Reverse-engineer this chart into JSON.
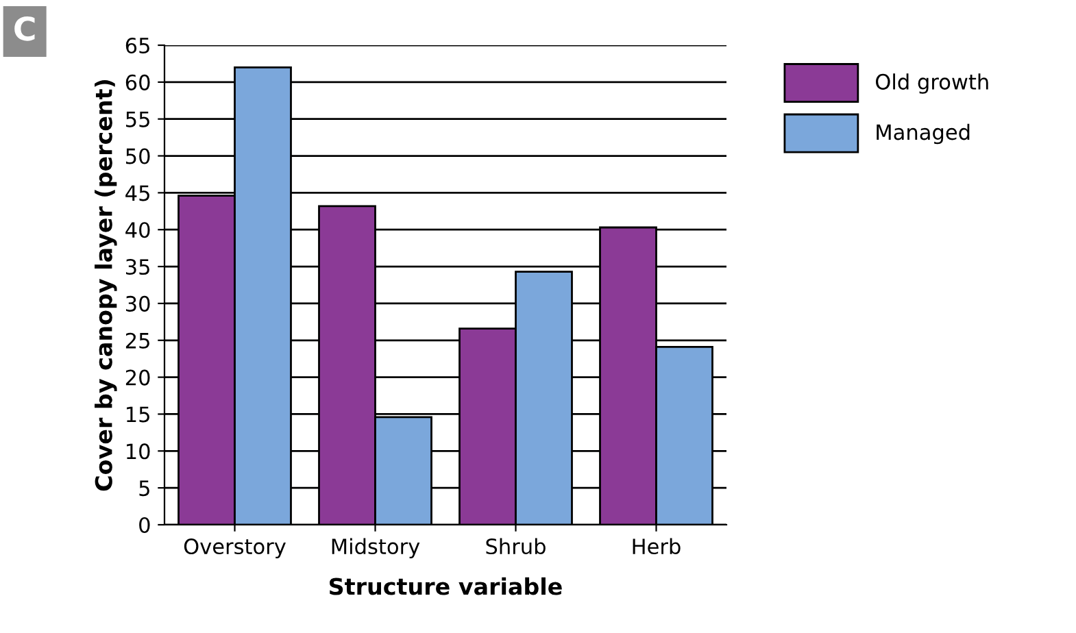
{
  "chart_data": {
    "type": "bar",
    "xlabel": "Structure variable",
    "ylabel": "Cover by canopy layer (percent)",
    "categories": [
      "Overstory",
      "Midstory",
      "Shrub",
      "Herb"
    ],
    "series": [
      {
        "name": "Old growth",
        "color": "#8b3a96",
        "values": [
          44.6,
          43.2,
          26.6,
          40.3
        ]
      },
      {
        "name": "Managed",
        "color": "#7ba7db",
        "values": [
          62.0,
          14.6,
          34.3,
          24.1
        ]
      }
    ],
    "ylim": [
      0,
      65
    ],
    "yticks": [
      0,
      5,
      10,
      15,
      20,
      25,
      30,
      35,
      40,
      45,
      50,
      55,
      60,
      65
    ],
    "grid": "y",
    "legend": "top right",
    "annotations": [
      "C"
    ]
  }
}
